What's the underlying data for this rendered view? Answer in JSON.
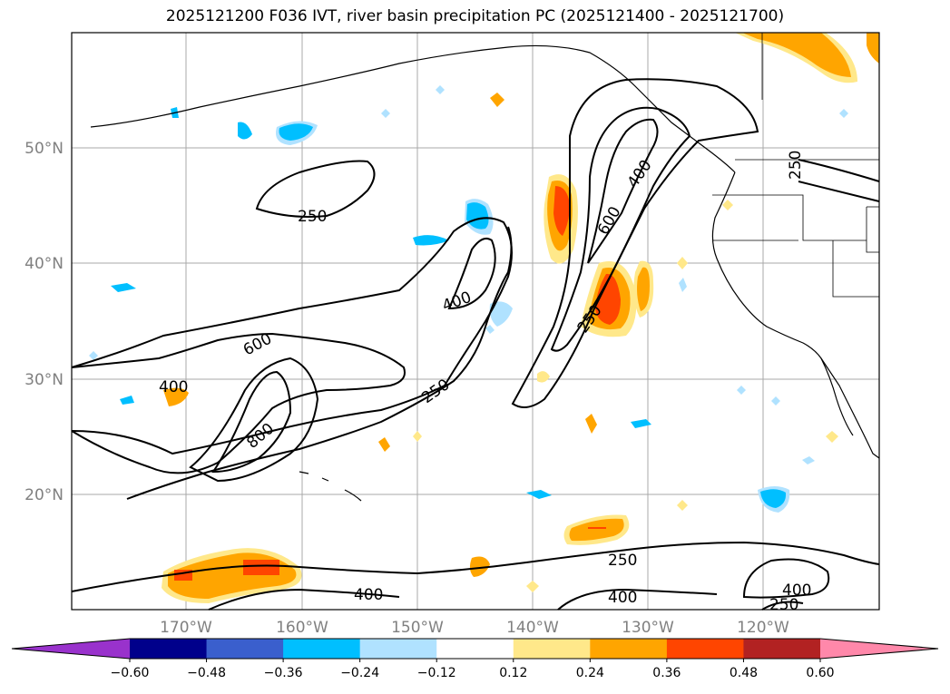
{
  "title": "2025121200 F036 IVT, river basin precipitation PC (2025121400 - 2025121700)",
  "lat_labels": [
    "50°N",
    "40°N",
    "30°N",
    "20°N"
  ],
  "lon_labels": [
    "170°W",
    "160°W",
    "150°W",
    "140°W",
    "130°W",
    "120°W"
  ],
  "contour_labels": [
    "250",
    "400",
    "600",
    "800",
    "250",
    "400",
    "250",
    "600",
    "400",
    "250",
    "250",
    "400",
    "400",
    "250",
    "400",
    "250"
  ],
  "colorbar": {
    "ticks": [
      "−0.60",
      "−0.48",
      "−0.36",
      "−0.24",
      "−0.12",
      "0.12",
      "0.24",
      "0.36",
      "0.48",
      "0.60"
    ],
    "colors": [
      "#9932cc",
      "#00008b",
      "#3a5fcd",
      "#00bfff",
      "#b0e2ff",
      "#ffffff",
      "#ffe88a",
      "#ffa500",
      "#ff4500",
      "#b22222",
      "#ff88aa"
    ]
  },
  "colors": {
    "positive_light": "#ffe88a",
    "positive_mid": "#ffa500",
    "positive_high": "#ff4500",
    "negative_light": "#b0e2ff",
    "negative_mid": "#00bfff",
    "grid": "#a9a9a9"
  }
}
